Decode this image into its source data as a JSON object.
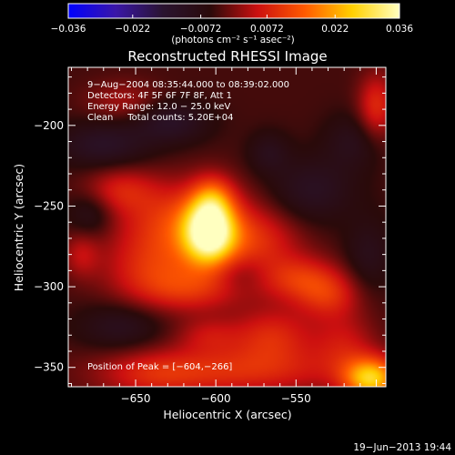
{
  "chart_data": {
    "type": "heatmap",
    "title": "Reconstructed RHESSI Image",
    "xlabel": "Heliocentric X (arcsec)",
    "ylabel": "Heliocentric Y (arcsec)",
    "xlim": [
      -692,
      -494
    ],
    "ylim": [
      -362,
      -164
    ],
    "x_ticks": [
      -650,
      -600,
      -550
    ],
    "x_tick_labels": [
      "−650",
      "−600",
      "−550"
    ],
    "y_ticks": [
      -200,
      -250,
      -300,
      -350
    ],
    "y_tick_labels": [
      "−200",
      "−250",
      "−300",
      "−350"
    ],
    "colorbar": {
      "range": [
        -0.036,
        0.036
      ],
      "ticks": [
        -0.036,
        -0.022,
        -0.0072,
        0.0072,
        0.022,
        0.036
      ],
      "tick_labels": [
        "−0.036",
        "−0.022",
        "−0.0072",
        "0.0072",
        "0.022",
        "0.036"
      ],
      "label": "(photons cm⁻² s⁻¹ asec⁻²)",
      "colors": [
        "#0000ff",
        "#3a16a8",
        "#2a1430",
        "#2a0a0a",
        "#cc1010",
        "#ff5a00",
        "#ffd000",
        "#ffffc0"
      ]
    },
    "annotations": [
      "9−Aug−2004 08:35:44.000 to 08:39:02.000",
      "Detectors: 4F 5F 6F 7F 8F, Att 1",
      "Energy Range: 12.0 − 25.0 keV",
      "Clean     Total counts: 5.20E+04"
    ],
    "peak_label": "Position of Peak = [−604,−266]",
    "peak": {
      "x": -604,
      "y": -266,
      "value": 0.036
    },
    "blobs": [
      {
        "x": -604,
        "y": -266,
        "sx": 11,
        "sy": 14,
        "value": 0.034
      },
      {
        "x": -602,
        "y": -245,
        "sx": 9,
        "sy": 10,
        "value": 0.012
      },
      {
        "x": -620,
        "y": -262,
        "sx": 28,
        "sy": 18,
        "value": 0.016
      },
      {
        "x": -575,
        "y": -272,
        "sx": 20,
        "sy": 14,
        "value": 0.01
      },
      {
        "x": -548,
        "y": -295,
        "sx": 18,
        "sy": 10,
        "value": 0.012
      },
      {
        "x": -530,
        "y": -306,
        "sx": 14,
        "sy": 10,
        "value": 0.01
      },
      {
        "x": -660,
        "y": -240,
        "sx": 16,
        "sy": 10,
        "value": 0.009
      },
      {
        "x": -640,
        "y": -290,
        "sx": 22,
        "sy": 14,
        "value": 0.009
      },
      {
        "x": -615,
        "y": -302,
        "sx": 24,
        "sy": 10,
        "value": 0.01
      },
      {
        "x": -565,
        "y": -330,
        "sx": 18,
        "sy": 12,
        "value": 0.011
      },
      {
        "x": -605,
        "y": -330,
        "sx": 14,
        "sy": 8,
        "value": 0.007
      },
      {
        "x": -590,
        "y": -352,
        "sx": 50,
        "sy": 11,
        "value": 0.012
      },
      {
        "x": -640,
        "y": -355,
        "sx": 22,
        "sy": 10,
        "value": 0.006
      },
      {
        "x": -503,
        "y": -357,
        "sx": 12,
        "sy": 9,
        "value": 0.028
      },
      {
        "x": -520,
        "y": -335,
        "sx": 14,
        "sy": 14,
        "value": 0.008
      },
      {
        "x": -500,
        "y": -188,
        "sx": 8,
        "sy": 14,
        "value": 0.012
      },
      {
        "x": -658,
        "y": -185,
        "sx": 16,
        "sy": 9,
        "value": 0.006
      },
      {
        "x": -567,
        "y": -217,
        "sx": 9,
        "sy": 9,
        "value": -0.006
      },
      {
        "x": -684,
        "y": -280,
        "sx": 8,
        "sy": 10,
        "value": 0.007
      },
      {
        "x": -670,
        "y": -212,
        "sx": 20,
        "sy": 10,
        "value": -0.009
      },
      {
        "x": -628,
        "y": -198,
        "sx": 16,
        "sy": 9,
        "value": -0.009
      },
      {
        "x": -678,
        "y": -255,
        "sx": 10,
        "sy": 10,
        "value": -0.007
      },
      {
        "x": -540,
        "y": -240,
        "sx": 18,
        "sy": 14,
        "value": -0.008
      },
      {
        "x": -515,
        "y": -210,
        "sx": 12,
        "sy": 12,
        "value": -0.006
      },
      {
        "x": -505,
        "y": -280,
        "sx": 10,
        "sy": 16,
        "value": -0.006
      },
      {
        "x": -660,
        "y": -325,
        "sx": 18,
        "sy": 10,
        "value": -0.007
      },
      {
        "x": -585,
        "y": -292,
        "sx": 12,
        "sy": 8,
        "value": -0.004
      }
    ]
  },
  "footer_date": "19−Jun−2013 19:44"
}
